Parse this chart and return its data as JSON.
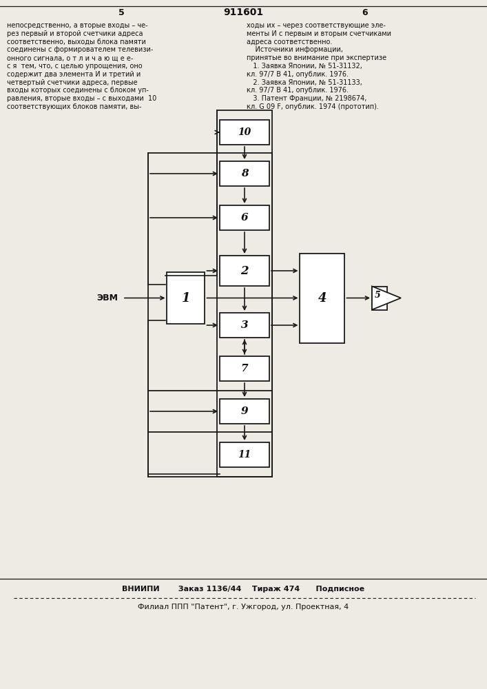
{
  "bg_color": "#eeebe4",
  "line_color": "#1a1a1a",
  "box_color": "#ffffff",
  "text_color": "#111111",
  "header": "911601",
  "col5": "5",
  "col6": "6",
  "left_text_lines": [
    "непосредственно, а вторые входы – че-",
    "рез первый и второй счетчики адреса",
    "соответственно, выходы блока памяти",
    "соединены с формирователем телевизи-",
    "онного сигнала, о т л и ч а ю щ е е-",
    "с я  тем, что, с целью упрощения, оно",
    "содержит два элемента И и третий и",
    "четвертый счетчики адреса, первые",
    "входы которых соединены с блоком уп-",
    "равления, вторые входы – с выходами  10",
    "соответствующих блоков памяти, вы-"
  ],
  "right_text_lines": [
    "ходы их – через соответствующие эле-",
    "менты И с первым и вторым счетчиками",
    "адреса соответственно.",
    "    Источники информации,",
    "принятые во внимание при экспертизе",
    "   1. Заявка Японии, № 51-31132,",
    "кл. 97/7 В 41, опублик. 1976.",
    "   2. Заявка Японии, № 51-31133,",
    "кл. 97/7 В 41, опублик. 1976.",
    "   3. Патент Франции, № 2198674,",
    "кл. G 09 F, опублик. 1974 (прототип)."
  ],
  "footer1": "ВНИИПИ       Заказ 1136/44    Тираж 474      Подписное",
  "footer2": "Филиал ППП \"Патент\", г. Ужгород, ул. Проектная, 4",
  "evm": "ЭВМ"
}
